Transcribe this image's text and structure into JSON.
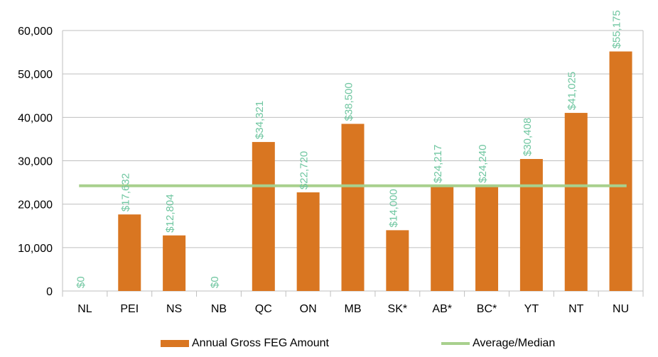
{
  "chart_data": {
    "type": "bar",
    "categories": [
      "NL",
      "PEI",
      "NS",
      "NB",
      "QC",
      "ON",
      "MB",
      "SK*",
      "AB*",
      "BC*",
      "YT",
      "NT",
      "NU"
    ],
    "series": [
      {
        "name": "Annual Gross FEG Amount",
        "type": "bar",
        "color": "#d97621",
        "values": [
          0,
          17632,
          12804,
          0,
          34321,
          22720,
          38500,
          14000,
          24217,
          24240,
          30408,
          41025,
          55175
        ],
        "data_labels": [
          "$0",
          "$17,632",
          "$12,804",
          "$0",
          "$34,321",
          "$22,720",
          "$38,500",
          "$14,000",
          "$24,217",
          "$24,240",
          "$30,408",
          "$41,025",
          "$55,175"
        ]
      },
      {
        "name": "Average/Median",
        "type": "line",
        "color": "#a8d08d",
        "value": 24229
      }
    ],
    "ylim": [
      0,
      60000
    ],
    "y_ticks": [
      "0",
      "10,000",
      "20,000",
      "30,000",
      "40,000",
      "50,000",
      "60,000"
    ],
    "grid": true,
    "legend_position": "bottom",
    "data_label_color": "#6fc6a0"
  }
}
